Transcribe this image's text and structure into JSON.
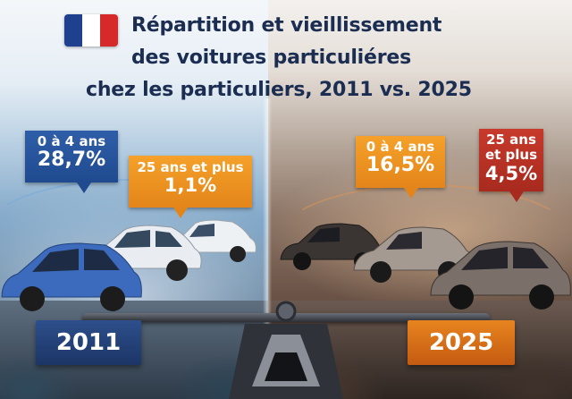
{
  "title": {
    "line1": "Répartition et vieillissement",
    "line2": "des voitures particuliéres",
    "line3": "chez les particuliers, 2011 vs. 2025"
  },
  "flag": {
    "colors": [
      "#1f3f8f",
      "#ffffff",
      "#d62a2a"
    ],
    "icon": "french-flag-icon"
  },
  "year_2011": {
    "label": "2011",
    "callout_new": {
      "label": "0 à 4 ans",
      "value": "28,7%"
    },
    "callout_old": {
      "label": "25 ans et plus",
      "value": "1,1%"
    }
  },
  "year_2025": {
    "label": "2025",
    "callout_new": {
      "label": "0 à 4 ans",
      "value": "16,5%"
    },
    "callout_old": {
      "label_line1": "25 ans",
      "label_line2": "et plus",
      "value": "4,5%"
    }
  },
  "colors": {
    "blue": "#2f5ea8",
    "orange": "#f5a12a",
    "red": "#c73a2c",
    "title": "#1c2d52"
  },
  "icons": [
    "french-flag-icon",
    "balance-scale-icon",
    "car-icon"
  ]
}
